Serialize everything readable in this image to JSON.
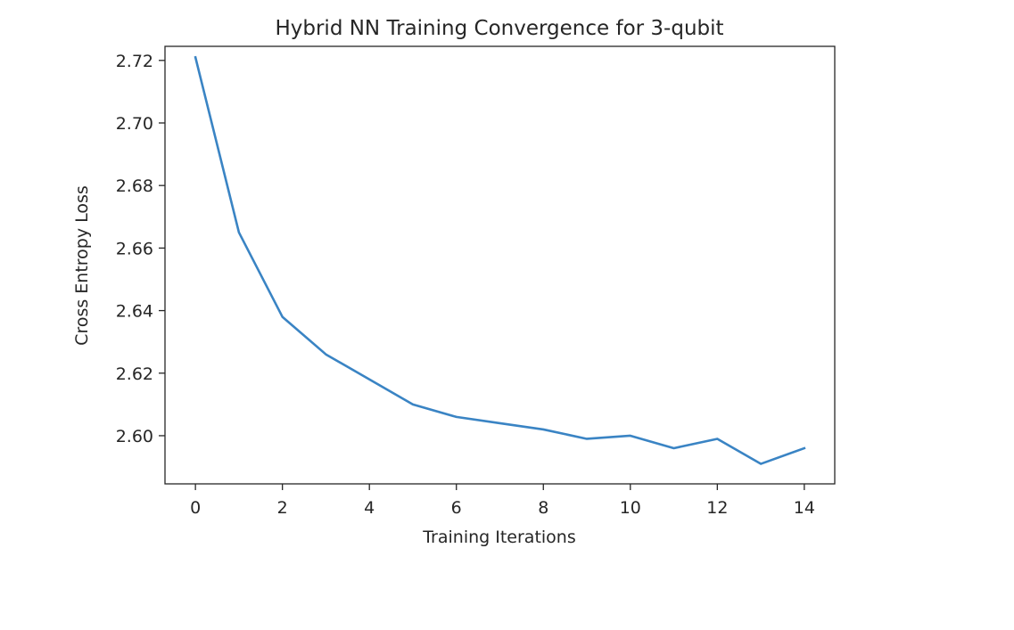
{
  "chart_data": {
    "type": "line",
    "title": "Hybrid NN Training Convergence for 3-qubit",
    "xlabel": "Training Iterations",
    "ylabel": "Cross Entropy Loss",
    "xlim": [
      -0.7,
      14.7
    ],
    "ylim": [
      2.5846,
      2.7245
    ],
    "xticks": [
      0,
      2,
      4,
      6,
      8,
      10,
      12,
      14
    ],
    "xtick_labels": [
      "0",
      "2",
      "4",
      "6",
      "8",
      "10",
      "12",
      "14"
    ],
    "yticks": [
      2.6,
      2.62,
      2.64,
      2.66,
      2.68,
      2.7,
      2.72
    ],
    "ytick_labels": [
      "2.60",
      "2.62",
      "2.64",
      "2.66",
      "2.68",
      "2.70",
      "2.72"
    ],
    "grid": false,
    "series": [
      {
        "color": "#3a84c4",
        "x": [
          0,
          1,
          2,
          3,
          4,
          5,
          6,
          7,
          8,
          9,
          10,
          11,
          12,
          13,
          14
        ],
        "y": [
          2.721,
          2.665,
          2.638,
          2.626,
          2.618,
          2.61,
          2.606,
          2.604,
          2.602,
          2.599,
          2.6,
          2.596,
          2.599,
          2.591,
          2.596
        ]
      }
    ]
  }
}
